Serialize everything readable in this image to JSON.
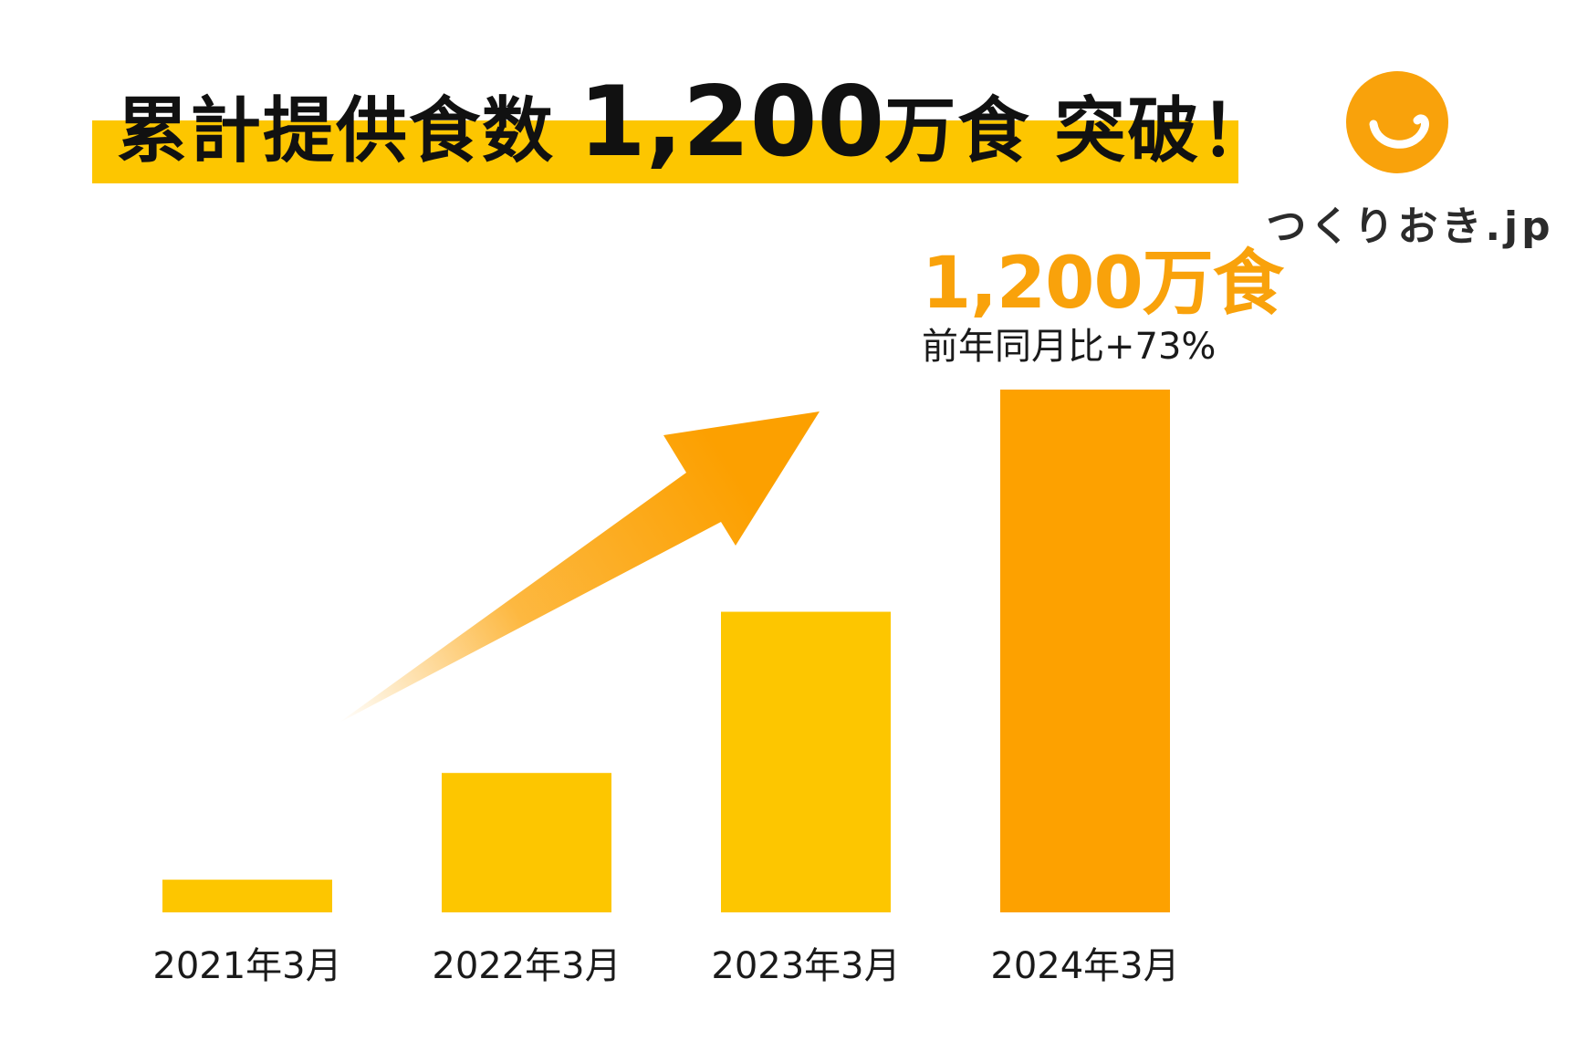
{
  "headline": {
    "part_a": "累計提供食数",
    "part_b": "1,200",
    "part_c": "万食",
    "part_d": "突破！"
  },
  "logo": {
    "text": "つくりおき.jp",
    "icon": "smile-icon"
  },
  "callout": {
    "value": "1,200万食",
    "sub": "前年同月比+73%"
  },
  "colors": {
    "band": "#FDC600",
    "bar_yellow": "#FDC600",
    "bar_orange": "#FDA100",
    "accent": "#F9A20B",
    "arrow": "#FCA000",
    "text_dark": "#1a1a1a"
  },
  "chart_data": {
    "type": "bar",
    "title": "累計提供食数 1,200万食 突破！",
    "categories": [
      "2021年3月",
      "2022年3月",
      "2023年3月",
      "2024年3月"
    ],
    "values": [
      75,
      320,
      690,
      1200
    ],
    "unit": "万食",
    "ylim": [
      0,
      1200
    ],
    "xlabel": "",
    "ylabel": "",
    "grid": false,
    "legend": "none",
    "annotations": [
      {
        "category": "2024年3月",
        "label": "1,200万食",
        "sublabel": "前年同月比+73%"
      }
    ],
    "bar_color_keys": [
      "bar_yellow",
      "bar_yellow",
      "bar_yellow",
      "bar_orange"
    ]
  }
}
